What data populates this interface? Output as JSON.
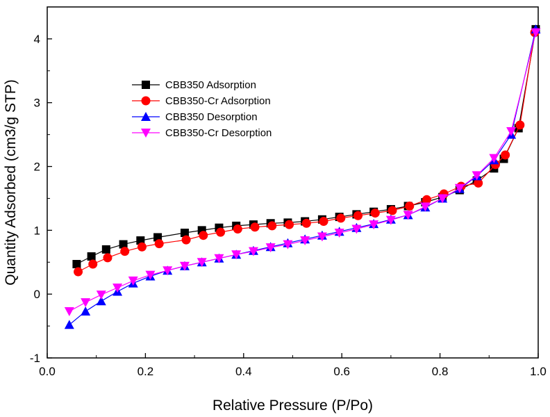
{
  "chart_data": {
    "type": "line",
    "title": "",
    "xlabel": "Relative Pressure (P/Po)",
    "ylabel": "Quantity Adsorbed (cm3/g STP)",
    "xlim": [
      0.0,
      1.0
    ],
    "ylim": [
      -1,
      4.5
    ],
    "xticks": [
      "0.0",
      "0.2",
      "0.4",
      "0.6",
      "0.8",
      "1.0"
    ],
    "yticks": [
      "-1",
      "0",
      "1",
      "2",
      "3",
      "4"
    ],
    "grid": false,
    "legend_position": "top-left",
    "series": [
      {
        "name": "CBB350 Adsorption",
        "color": "#000000",
        "marker": "square",
        "x": [
          0.06,
          0.09,
          0.12,
          0.155,
          0.19,
          0.225,
          0.28,
          0.315,
          0.35,
          0.385,
          0.42,
          0.455,
          0.49,
          0.525,
          0.56,
          0.595,
          0.63,
          0.665,
          0.7,
          0.735,
          0.77,
          0.805,
          0.84,
          0.875,
          0.91,
          0.93,
          0.96,
          0.995
        ],
        "y": [
          0.47,
          0.59,
          0.7,
          0.78,
          0.84,
          0.89,
          0.96,
          1.0,
          1.04,
          1.07,
          1.09,
          1.11,
          1.12,
          1.14,
          1.17,
          1.21,
          1.25,
          1.29,
          1.33,
          1.38,
          1.44,
          1.52,
          1.63,
          1.78,
          1.97,
          2.12,
          2.6,
          4.15
        ]
      },
      {
        "name": "CBB350-Cr Adsorption",
        "color": "#ff0000",
        "marker": "circle",
        "x": [
          0.063,
          0.093,
          0.123,
          0.158,
          0.193,
          0.228,
          0.283,
          0.318,
          0.353,
          0.388,
          0.423,
          0.458,
          0.493,
          0.528,
          0.563,
          0.598,
          0.633,
          0.668,
          0.703,
          0.738,
          0.773,
          0.808,
          0.843,
          0.878,
          0.913,
          0.933,
          0.963,
          0.993
        ],
        "y": [
          0.35,
          0.47,
          0.57,
          0.67,
          0.74,
          0.79,
          0.85,
          0.92,
          0.97,
          1.02,
          1.05,
          1.07,
          1.09,
          1.11,
          1.14,
          1.19,
          1.23,
          1.27,
          1.31,
          1.38,
          1.48,
          1.57,
          1.69,
          1.74,
          2.03,
          2.18,
          2.65,
          4.1
        ]
      },
      {
        "name": "CBB350 Desorption",
        "color": "#0000ff",
        "marker": "triangle-up",
        "x": [
          0.045,
          0.078,
          0.11,
          0.143,
          0.175,
          0.21,
          0.245,
          0.28,
          0.315,
          0.35,
          0.385,
          0.42,
          0.455,
          0.49,
          0.525,
          0.56,
          0.595,
          0.63,
          0.665,
          0.7,
          0.735,
          0.77,
          0.805,
          0.84,
          0.875,
          0.91,
          0.945,
          0.995
        ],
        "y": [
          -0.48,
          -0.27,
          -0.11,
          0.04,
          0.17,
          0.28,
          0.37,
          0.44,
          0.5,
          0.56,
          0.62,
          0.68,
          0.74,
          0.8,
          0.86,
          0.92,
          0.98,
          1.04,
          1.1,
          1.17,
          1.24,
          1.36,
          1.5,
          1.65,
          1.85,
          2.1,
          2.5,
          4.15
        ]
      },
      {
        "name": "CBB350-Cr Desorption",
        "color": "#ff00ff",
        "marker": "triangle-down",
        "x": [
          0.045,
          0.078,
          0.11,
          0.143,
          0.175,
          0.21,
          0.245,
          0.28,
          0.315,
          0.35,
          0.385,
          0.42,
          0.455,
          0.49,
          0.525,
          0.56,
          0.595,
          0.63,
          0.665,
          0.7,
          0.735,
          0.77,
          0.805,
          0.84,
          0.875,
          0.91,
          0.945,
          0.995
        ],
        "y": [
          -0.27,
          -0.13,
          -0.01,
          0.1,
          0.21,
          0.3,
          0.37,
          0.44,
          0.5,
          0.56,
          0.62,
          0.67,
          0.73,
          0.78,
          0.84,
          0.9,
          0.96,
          1.02,
          1.09,
          1.16,
          1.24,
          1.37,
          1.5,
          1.66,
          1.86,
          2.13,
          2.55,
          4.1
        ]
      }
    ]
  }
}
